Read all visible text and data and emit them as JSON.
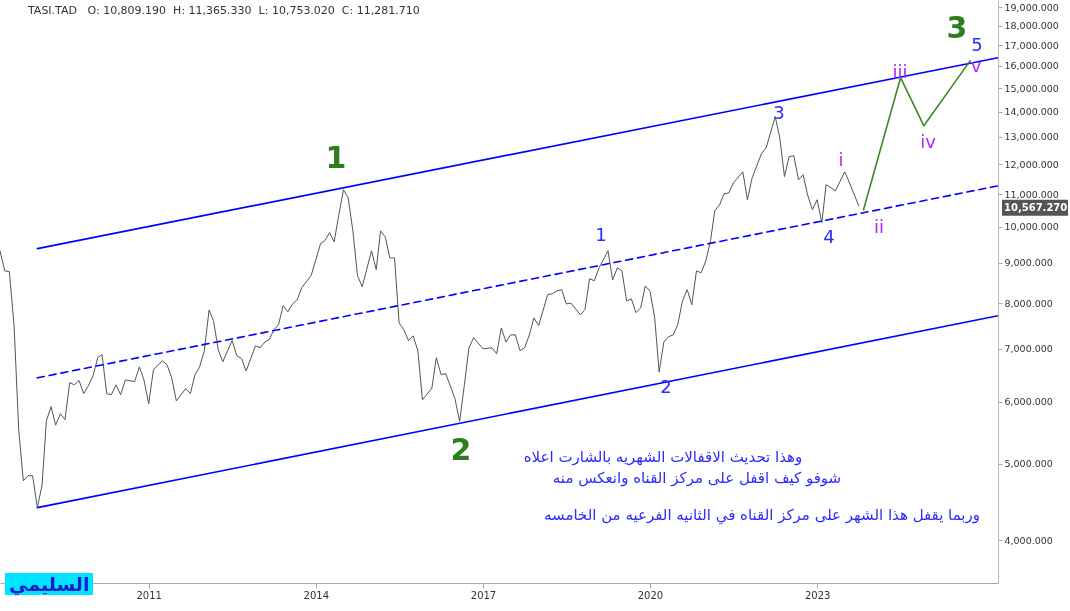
{
  "chart_data": {
    "type": "line",
    "title": "TASI.TAD   O: 10,809.190  H: 11,365.330  L: 10,753.020  C: 11,281.710",
    "log": true,
    "marker": "none",
    "xlim": [
      "2008-05",
      "2026-04"
    ],
    "xticks": [
      {
        "value": "2011-01",
        "label": "2011"
      },
      {
        "value": "2014-01",
        "label": "2014"
      },
      {
        "value": "2017-01",
        "label": "2017"
      },
      {
        "value": "2020-01",
        "label": "2020"
      },
      {
        "value": "2023-01",
        "label": "2023"
      }
    ],
    "ylim": [
      3530,
      19400
    ],
    "yticks": [
      {
        "value": 4000,
        "label": "4,000.000"
      },
      {
        "value": 5000,
        "label": "5,000.000"
      },
      {
        "value": 6000,
        "label": "6,000.000"
      },
      {
        "value": 7000,
        "label": "7,000.000"
      },
      {
        "value": 8000,
        "label": "8,000.000"
      },
      {
        "value": 9000,
        "label": "9,000.000"
      },
      {
        "value": 10000,
        "label": "10,000.000"
      },
      {
        "value": 11000,
        "label": "11,000.000"
      },
      {
        "value": 12000,
        "label": "12,000.000"
      },
      {
        "value": 13000,
        "label": "13,000.000"
      },
      {
        "value": 14000,
        "label": "14,000.000"
      },
      {
        "value": 15000,
        "label": "15,000.000"
      },
      {
        "value": 16000,
        "label": "16,000.000"
      },
      {
        "value": 17000,
        "label": "17,000.000"
      },
      {
        "value": 18000,
        "label": "18,000.000"
      },
      {
        "value": 19000,
        "label": "19,000.000"
      }
    ],
    "series": [
      {
        "color": "#555555",
        "x": [
          "2008-05",
          "2008-06",
          "2008-07",
          "2008-08",
          "2008-09",
          "2008-10",
          "2008-11",
          "2008-12",
          "2009-01",
          "2009-02",
          "2009-03",
          "2009-04",
          "2009-05",
          "2009-06",
          "2009-07",
          "2009-08",
          "2009-09",
          "2009-10",
          "2009-11",
          "2009-12",
          "2010-01",
          "2010-02",
          "2010-03",
          "2010-04",
          "2010-05",
          "2010-06",
          "2010-07",
          "2010-08",
          "2010-10",
          "2010-11",
          "2010-12",
          "2011-01",
          "2011-02",
          "2011-04",
          "2011-05",
          "2011-06",
          "2011-07",
          "2011-09",
          "2011-10",
          "2011-11",
          "2011-12",
          "2012-01",
          "2012-02",
          "2012-03",
          "2012-04",
          "2012-05",
          "2012-07",
          "2012-08",
          "2012-09",
          "2012-10",
          "2012-12",
          "2013-01",
          "2013-02",
          "2013-03",
          "2013-04",
          "2013-05",
          "2013-06",
          "2013-07",
          "2013-08",
          "2013-09",
          "2013-10",
          "2013-12",
          "2014-01",
          "2014-02",
          "2014-03",
          "2014-04",
          "2014-05",
          "2014-06",
          "2014-07",
          "2014-08",
          "2014-09",
          "2014-10",
          "2014-11",
          "2015-01",
          "2015-02",
          "2015-03",
          "2015-04",
          "2015-05",
          "2015-06",
          "2015-07",
          "2015-08",
          "2015-09",
          "2015-10",
          "2015-11",
          "2015-12",
          "2016-02",
          "2016-03",
          "2016-04",
          "2016-05",
          "2016-06",
          "2016-07",
          "2016-08",
          "2016-09",
          "2016-10",
          "2016-11",
          "2017-01",
          "2017-03",
          "2017-04",
          "2017-05",
          "2017-06",
          "2017-07",
          "2017-08",
          "2017-09",
          "2017-10",
          "2017-11",
          "2017-12",
          "2018-01",
          "2018-03",
          "2018-04",
          "2018-05",
          "2018-06",
          "2018-07",
          "2018-08",
          "2018-10",
          "2018-11",
          "2018-12",
          "2019-01",
          "2019-02",
          "2019-04",
          "2019-05",
          "2019-06",
          "2019-07",
          "2019-08",
          "2019-09",
          "2019-10",
          "2019-11",
          "2019-12",
          "2020-01",
          "2020-02",
          "2020-03",
          "2020-04",
          "2020-05",
          "2020-06",
          "2020-07",
          "2020-08",
          "2020-09",
          "2020-10",
          "2020-11",
          "2020-12",
          "2021-01",
          "2021-02",
          "2021-03",
          "2021-04",
          "2021-05",
          "2021-06",
          "2021-07",
          "2021-09",
          "2021-10",
          "2021-11",
          "2022-01",
          "2022-02",
          "2022-04",
          "2022-05",
          "2022-06",
          "2022-07",
          "2022-08",
          "2022-09",
          "2022-10",
          "2022-11",
          "2022-12",
          "2023-01",
          "2023-02",
          "2023-03",
          "2023-05",
          "2023-07",
          "2023-08",
          "2023-10"
        ],
        "values": [
          9320,
          8790,
          8770,
          7510,
          5510,
          4760,
          4830,
          4830,
          4400,
          4700,
          5670,
          5910,
          5600,
          5790,
          5690,
          6340,
          6300,
          6380,
          6140,
          6280,
          6470,
          6820,
          6880,
          6140,
          6120,
          6300,
          6120,
          6390,
          6360,
          6640,
          6390,
          5960,
          6580,
          6760,
          6680,
          6430,
          6010,
          6230,
          6140,
          6490,
          6640,
          6960,
          7840,
          7600,
          6980,
          6740,
          7170,
          6860,
          6800,
          6560,
          7060,
          7020,
          7140,
          7190,
          7400,
          7510,
          7940,
          7800,
          7980,
          8080,
          8370,
          8670,
          9080,
          9520,
          9600,
          9830,
          9570,
          10360,
          11140,
          10880,
          9880,
          8670,
          8390,
          9320,
          8820,
          9880,
          9710,
          9130,
          9130,
          7550,
          7400,
          7170,
          7270,
          6960,
          6030,
          6240,
          6820,
          6490,
          6510,
          6280,
          6050,
          5660,
          6300,
          7020,
          7230,
          7000,
          7020,
          6900,
          7440,
          7140,
          7290,
          7290,
          6960,
          7020,
          7290,
          7660,
          7490,
          8200,
          8220,
          8290,
          8320,
          7980,
          8000,
          7730,
          7850,
          8590,
          8540,
          8870,
          9320,
          8560,
          8870,
          8790,
          8050,
          8100,
          7780,
          7890,
          8410,
          8290,
          7660,
          6540,
          7140,
          7250,
          7290,
          7510,
          8050,
          8320,
          7960,
          8790,
          8740,
          9050,
          9600,
          10480,
          10660,
          11010,
          11040,
          11370,
          11740,
          10820,
          11540,
          12380,
          12600,
          13800,
          12970,
          11580,
          12270,
          12310,
          11470,
          11640,
          10950,
          10510,
          10820,
          10120,
          11310,
          11110,
          11740,
          11370,
          10630
        ]
      },
      {
        "color": "#0000ff",
        "x": [
          "2009-01",
          "2026-04"
        ],
        "values": [
          9380,
          16390
        ]
      },
      {
        "color": "#0000ff",
        "x": [
          "2009-01",
          "2026-04"
        ],
        "values": [
          6430,
          11270
        ],
        "line_style": "dashed"
      },
      {
        "color": "#0000ff",
        "x": [
          "2009-01",
          "2026-04"
        ],
        "values": [
          4400,
          7710
        ]
      },
      {
        "color": "#3a8a2a",
        "x": [
          "2023-11",
          "2024-07",
          "2024-12",
          "2025-10"
        ],
        "values": [
          10510,
          15460,
          13430,
          16250
        ]
      }
    ],
    "ref_lines": [
      {
        "axis": "y",
        "value": 10567.27,
        "label": "10,567.270",
        "color": "#555555"
      }
    ],
    "annotations": [
      "1",
      "2",
      "3",
      "1",
      "2",
      "3",
      "4",
      "5",
      "i",
      "ii",
      "iii",
      "iv",
      "v",
      "وهذا تحديث الاقفالات الشهريه بالشارت اعلاه",
      "شوفو كيف اقفل على مركز القناه وانعكس منه",
      "وربما يقفل هذا الشهر على مركز القناه في الثانيه الفرعيه من الخامسه",
      "السليمي"
    ]
  }
}
